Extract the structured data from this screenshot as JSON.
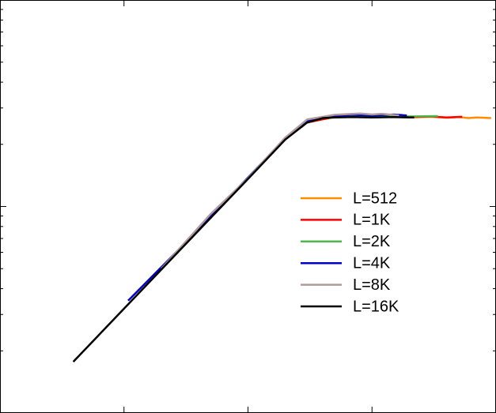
{
  "chart_data": {
    "type": "line",
    "xscale": "log",
    "yscale": "log",
    "xlim": [
      1,
      10000
    ],
    "xticks": [
      10,
      100,
      1000
    ],
    "ylim": [
      1,
      100
    ],
    "yticks": [
      2,
      3,
      4,
      5,
      6,
      7,
      8,
      9,
      10,
      20,
      30,
      40,
      50,
      60,
      70,
      80,
      90
    ],
    "legend": "center right",
    "series": [
      {
        "name": "L=512",
        "color": "#ff8c00",
        "x": [
          300,
          500,
          1000,
          2000,
          3000,
          4000,
          5000,
          6000,
          7000,
          8000,
          9130
        ],
        "values": [
          25.6,
          27.1,
          27.3,
          27.0,
          27.2,
          26.9,
          27.1,
          26.8,
          27.0,
          26.9,
          26.8
        ]
      },
      {
        "name": "L=1K",
        "color": "#ff0000",
        "x": [
          300,
          500,
          1000,
          2000,
          3000,
          4000,
          5340
        ],
        "values": [
          25.5,
          27.2,
          27.4,
          27.1,
          27.3,
          27.0,
          27.2
        ]
      },
      {
        "name": "L=2K",
        "color": "#4cb84c",
        "x": [
          30,
          100,
          200,
          300,
          500,
          1000,
          2000,
          3410
        ],
        "values": [
          6.4,
          13.7,
          21.3,
          25.8,
          27.6,
          27.5,
          27.3,
          27.4
        ]
      },
      {
        "name": "L=4K",
        "color": "#0000cc",
        "x": [
          10.8,
          30,
          100,
          200,
          300,
          500,
          700,
          1000,
          1500,
          1910
        ],
        "values": [
          3.5,
          6.5,
          13.8,
          21.4,
          25.9,
          27.4,
          27.8,
          27.6,
          27.9,
          27.6
        ]
      },
      {
        "name": "L=8K",
        "color": "#b09a9a",
        "x": [
          20,
          50,
          100,
          200,
          300,
          500,
          800,
          1000,
          1200,
          1650
        ],
        "values": [
          5.0,
          9.2,
          13.7,
          21.6,
          26.4,
          27.8,
          28.2,
          27.9,
          28.1,
          27.6
        ]
      },
      {
        "name": "L=16K",
        "color": "#000000",
        "x": [
          3.9,
          10,
          30,
          100,
          200,
          300,
          400,
          500,
          700,
          1000,
          1500,
          2190
        ],
        "values": [
          1.77,
          3.2,
          6.39,
          13.6,
          21.1,
          25.5,
          26.8,
          27.0,
          27.1,
          27.0,
          27.1,
          27.0
        ]
      }
    ]
  }
}
